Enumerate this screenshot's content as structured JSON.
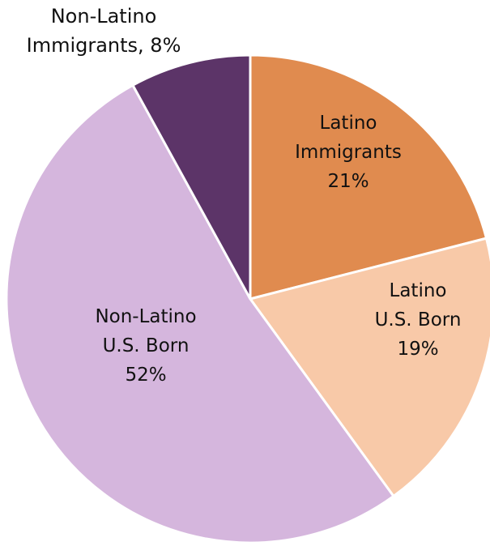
{
  "chart_data": {
    "type": "pie",
    "title": "",
    "start_angle_deg": 0,
    "direction": "clockwise",
    "slices": [
      {
        "name": "Latino Immigrants",
        "value": 21,
        "label_lines": [
          "Latino",
          "Immigrants",
          "21%"
        ],
        "label_position": "inside",
        "color": "#E08B4F"
      },
      {
        "name": "Latino U.S. Born",
        "value": 19,
        "label_lines": [
          "Latino",
          "U.S. Born",
          "19%"
        ],
        "label_position": "inside",
        "color": "#F8C9A8"
      },
      {
        "name": "Non-Latino U.S. Born",
        "value": 52,
        "label_lines": [
          "Non-Latino",
          "U.S. Born",
          "52%"
        ],
        "label_position": "inside",
        "color": "#D5B6DD"
      },
      {
        "name": "Non-Latino Immigrants",
        "value": 8,
        "label_lines": [
          "Non-Latino",
          "Immigrants, 8%"
        ],
        "label_position": "outside-top-left",
        "color": "#5C3468"
      }
    ]
  }
}
